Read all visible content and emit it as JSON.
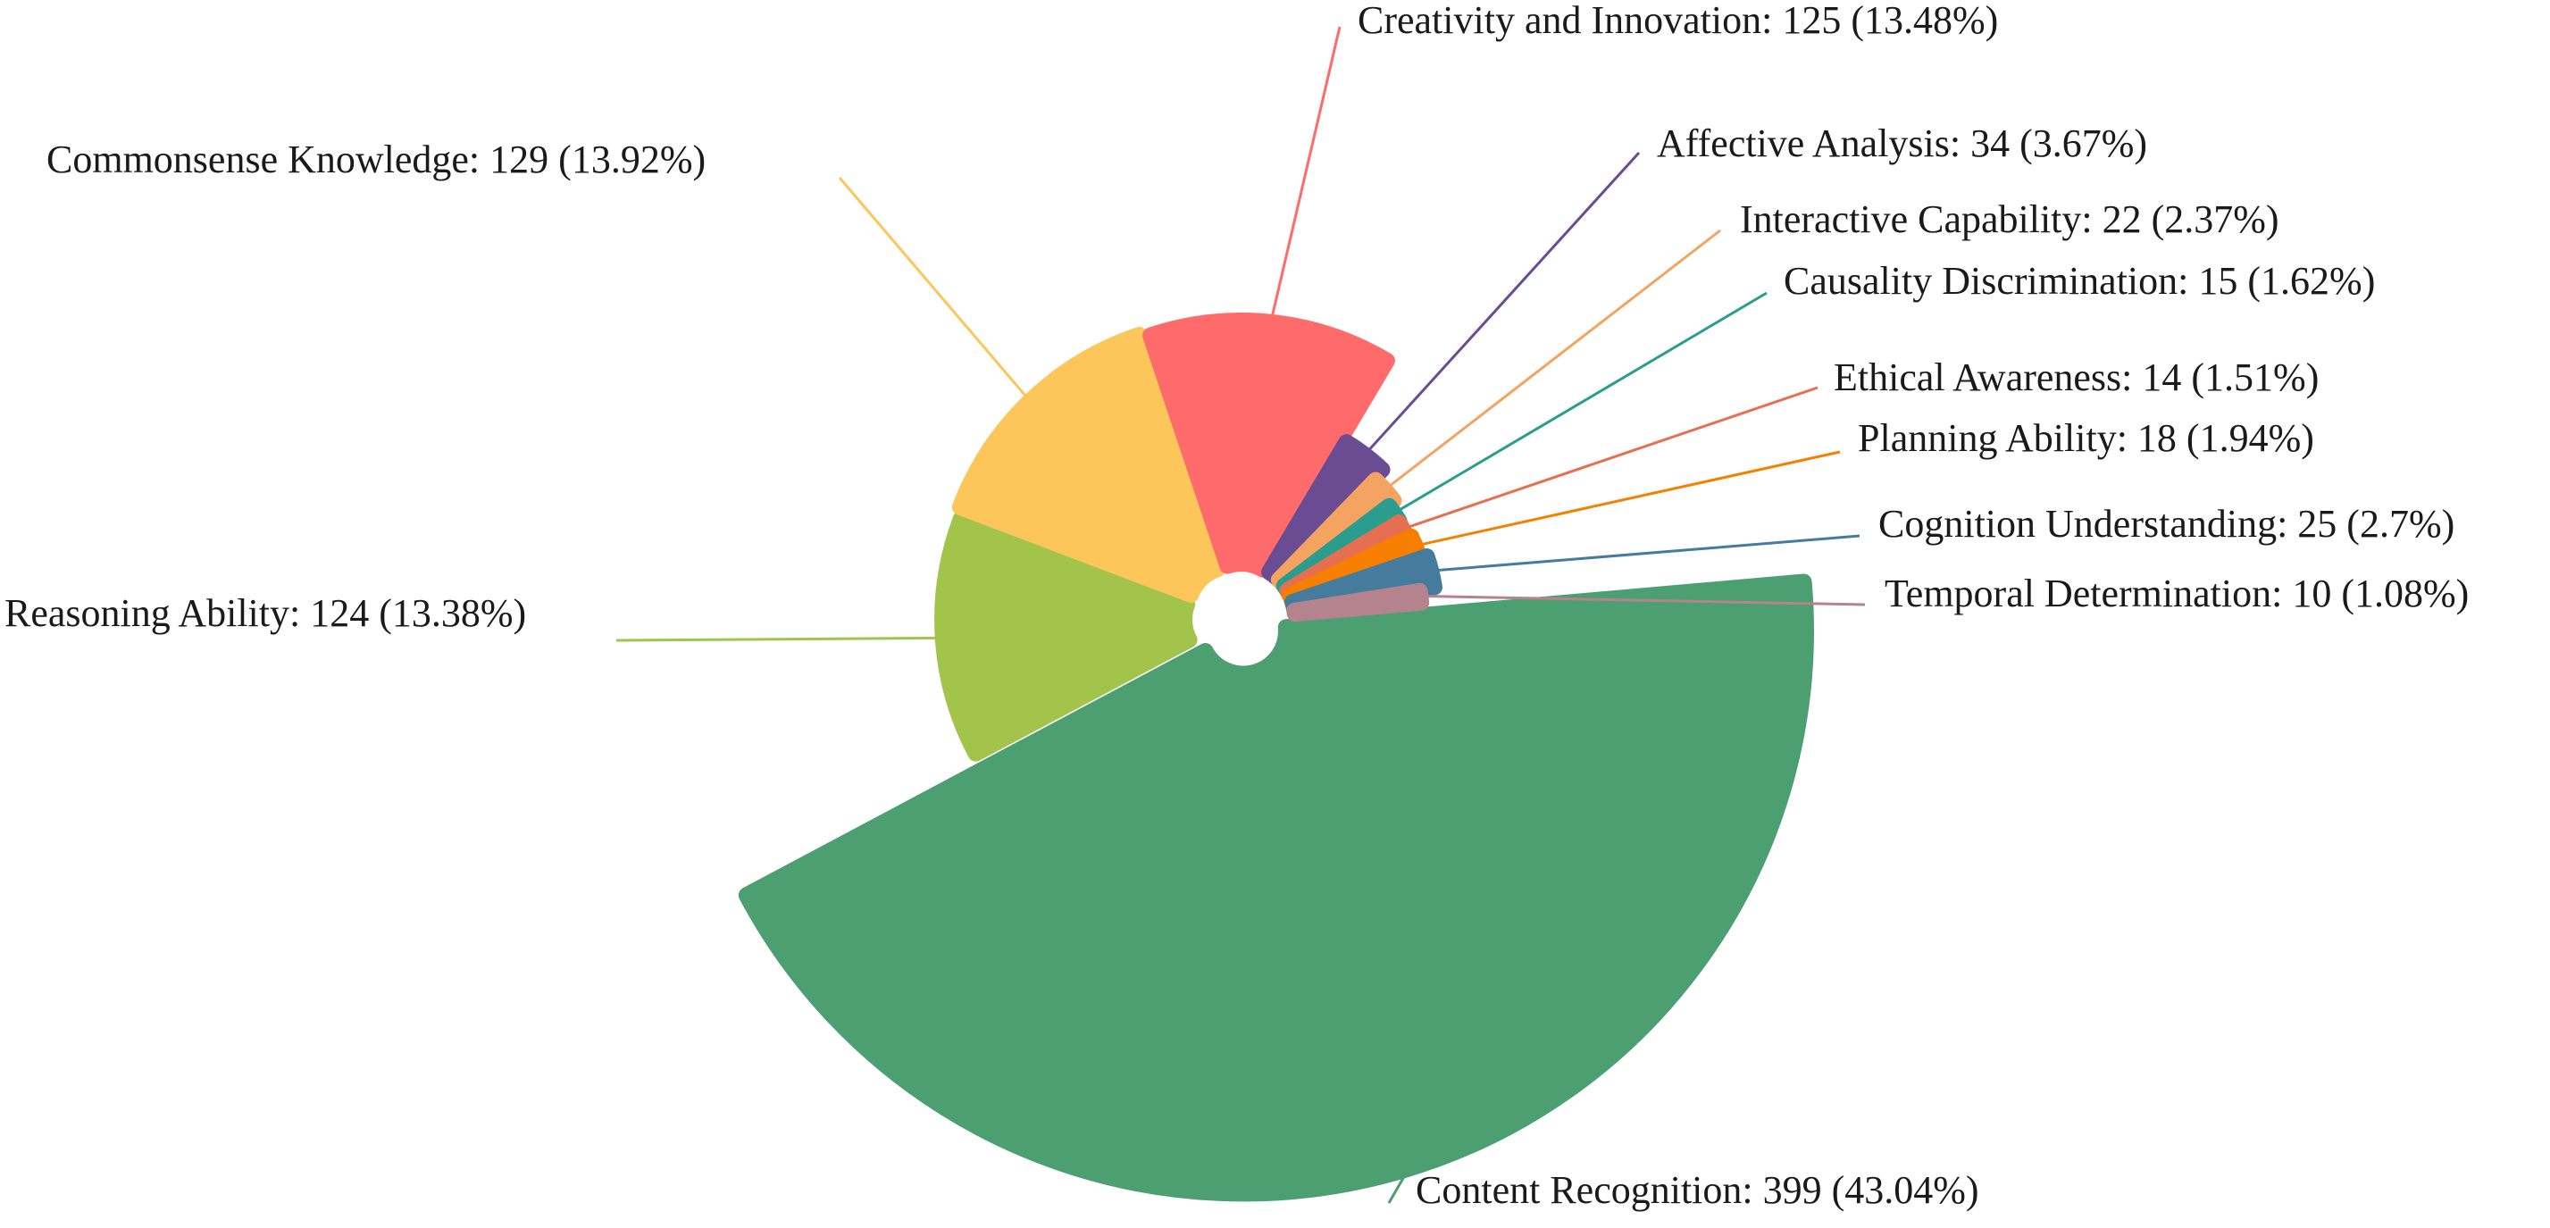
{
  "chart_data": {
    "type": "pie",
    "title": "",
    "slices": [
      {
        "label": "Content Recognition",
        "value": 399,
        "percent": "43.04%",
        "color": "#4B9F70"
      },
      {
        "label": "Reasoning Ability",
        "value": 124,
        "percent": "13.38%",
        "color": "#A2C44B"
      },
      {
        "label": "Commonsense Knowledge",
        "value": 129,
        "percent": "13.92%",
        "color": "#FDC65A"
      },
      {
        "label": "Creativity and Innovation",
        "value": 125,
        "percent": "13.48%",
        "color": "#FF6A6A"
      },
      {
        "label": "Affective Analysis",
        "value": 34,
        "percent": "3.67%",
        "color": "#6A4C93"
      },
      {
        "label": "Interactive Capability",
        "value": 22,
        "percent": "2.37%",
        "color": "#F4A460"
      },
      {
        "label": "Causality Discrimination",
        "value": 15,
        "percent": "1.62%",
        "color": "#2A9D8F"
      },
      {
        "label": "Ethical Awareness",
        "value": 14,
        "percent": "1.51%",
        "color": "#E76F51"
      },
      {
        "label": "Planning Ability",
        "value": 18,
        "percent": "1.94%",
        "color": "#F77F00"
      },
      {
        "label": "Cognition Understanding",
        "value": 25,
        "percent": "2.7%",
        "color": "#457B9D"
      },
      {
        "label": "Temporal Determination",
        "value": 10,
        "percent": "1.08%",
        "color": "#B5838D"
      }
    ],
    "label_text": [
      "Content Recognition: 399 (43.04%)",
      "Reasoning Ability: 124 (13.38%)",
      "Commonsense Knowledge: 129 (13.92%)",
      "Creativity and Innovation: 125 (13.48%)",
      "Affective Analysis: 34 (3.67%)",
      "Interactive Capability: 22 (2.37%)",
      "Causality Discrimination: 15 (1.62%)",
      "Ethical Awareness: 14 (1.51%)",
      "Planning Ability: 18 (1.94%)",
      "Cognition Understanding: 25 (2.7%)",
      "Temporal Determination: 10 (1.08%)"
    ],
    "style": "rose-pie (radius varies per slice), rounded exploded sectors, leader-line labels",
    "legend": "none"
  }
}
